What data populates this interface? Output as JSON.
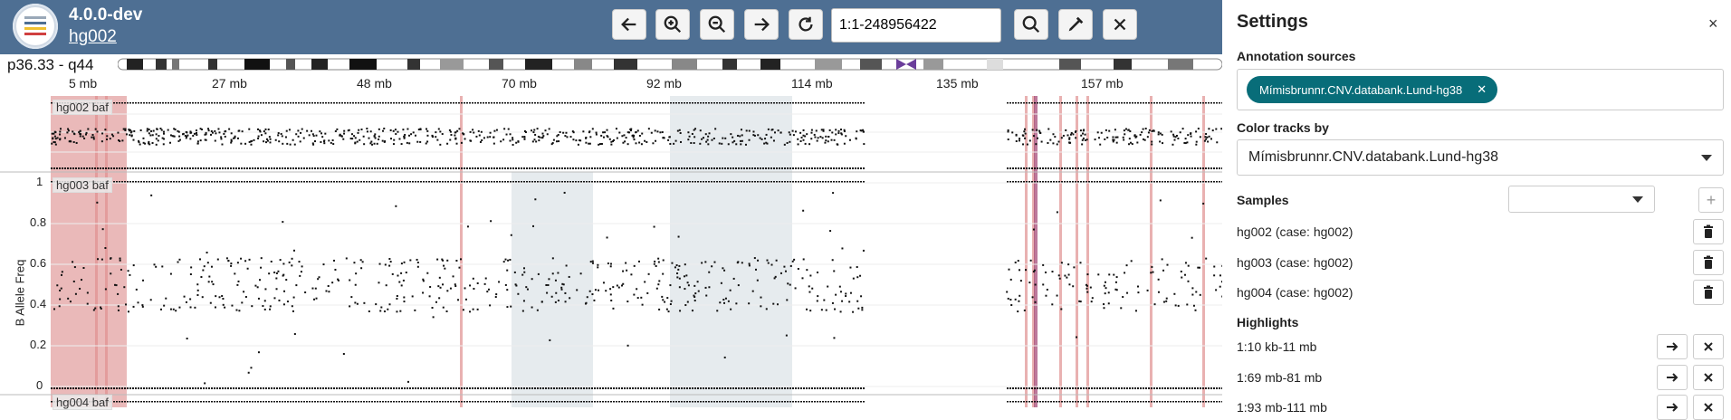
{
  "header": {
    "version": "4.0.0-dev",
    "case_id": "hg002",
    "region_value": "1:1-248956422",
    "icons": [
      "logo-icon",
      "arrow-left-icon",
      "zoom-in-icon",
      "zoom-out-icon",
      "arrow-right-icon",
      "reset-icon",
      "search-icon",
      "marker-icon",
      "close-icon"
    ]
  },
  "chromosome": {
    "band_range": "p36.33 - q44"
  },
  "ruler": {
    "ticks": [
      "5 mb",
      "27 mb",
      "48 mb",
      "70 mb",
      "92 mb",
      "114 mb",
      "135 mb",
      "157 mb"
    ]
  },
  "tracks": [
    {
      "label": "hg002 baf"
    },
    {
      "label": "hg003 baf"
    },
    {
      "label": "hg004 baf"
    }
  ],
  "y_axis": {
    "label": "B Allele Freq",
    "ticks": [
      "1",
      "0.8",
      "0.6",
      "0.4",
      "0.2",
      "0"
    ]
  },
  "settings": {
    "title": "Settings",
    "close_symbol": "×",
    "annotation_title": "Annotation sources",
    "annotation_chip": "Mímisbrunnr.CNV.databank.Lund-hg38",
    "chip_remove": "✕",
    "color_title": "Color tracks by",
    "color_value": "Mímisbrunnr.CNV.databank.Lund-hg38",
    "samples_title": "Samples",
    "add_symbol": "+",
    "samples": [
      {
        "text": "hg002 (case: hg002)"
      },
      {
        "text": "hg003 (case: hg002)"
      },
      {
        "text": "hg004 (case: hg002)"
      }
    ],
    "highlights_title": "Highlights",
    "highlights": [
      {
        "text": "1:10 kb-11 mb"
      },
      {
        "text": "1:69 mb-81 mb"
      },
      {
        "text": "1:93 mb-111 mb"
      }
    ]
  },
  "colors": {
    "header_bg": "#4e6f93",
    "chip_bg": "#086d79",
    "highlight_grey": "#d5dde2",
    "annotation_red": "#e8a0a0"
  }
}
